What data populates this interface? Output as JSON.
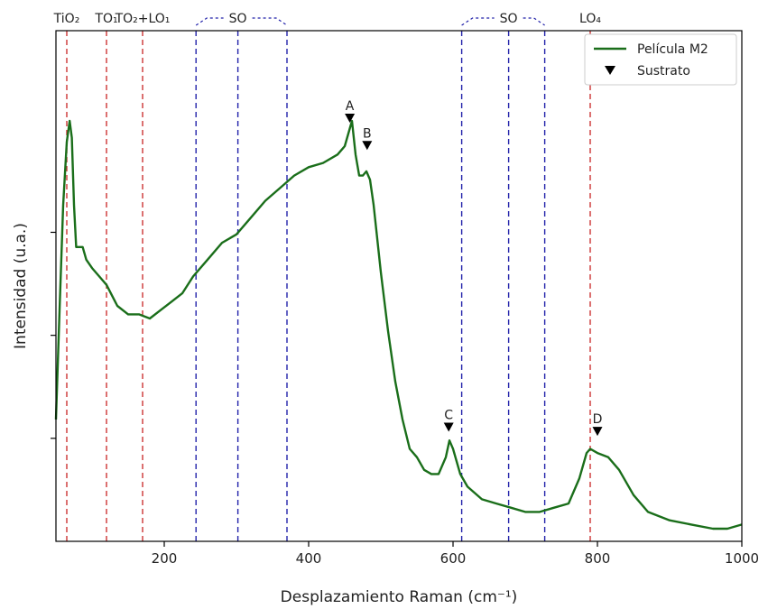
{
  "chart_data": {
    "type": "line",
    "xlabel": "Desplazamiento Raman (cm⁻¹)",
    "ylabel": "Intensidad (u.a.)",
    "xlim": [
      50,
      1000
    ],
    "ylim": [
      0,
      1
    ],
    "x_ticks": [
      {
        "value": 200,
        "label": "200"
      },
      {
        "value": 400,
        "label": "400"
      },
      {
        "value": 600,
        "label": "600"
      },
      {
        "value": 800,
        "label": "800"
      },
      {
        "value": 1000,
        "label": "1000"
      }
    ],
    "y_ticks": [
      0.245,
      0.49,
      0.735
    ],
    "series": [
      {
        "name": "Película M2",
        "color": "#1a6e1a",
        "x": [
          50,
          55,
          60,
          65,
          69,
          72,
          75,
          78,
          82,
          87,
          92,
          100,
          110,
          120,
          135,
          150,
          165,
          180,
          195,
          210,
          225,
          240,
          260,
          280,
          300,
          320,
          340,
          360,
          380,
          400,
          420,
          440,
          450,
          455,
          460,
          465,
          470,
          475,
          480,
          485,
          490,
          500,
          510,
          520,
          530,
          540,
          550,
          560,
          570,
          580,
          590,
          595,
          600,
          605,
          610,
          620,
          640,
          660,
          680,
          700,
          720,
          740,
          760,
          775,
          785,
          790,
          800,
          815,
          830,
          850,
          870,
          900,
          930,
          960,
          980,
          1000
        ],
        "y": [
          0.29,
          0.55,
          0.8,
          0.95,
          1.0,
          0.96,
          0.8,
          0.7,
          0.7,
          0.7,
          0.67,
          0.65,
          0.63,
          0.61,
          0.56,
          0.54,
          0.54,
          0.53,
          0.55,
          0.57,
          0.59,
          0.63,
          0.67,
          0.71,
          0.73,
          0.77,
          0.81,
          0.84,
          0.87,
          0.89,
          0.9,
          0.92,
          0.94,
          0.97,
          1.0,
          0.92,
          0.87,
          0.87,
          0.88,
          0.86,
          0.8,
          0.64,
          0.5,
          0.38,
          0.29,
          0.22,
          0.2,
          0.17,
          0.16,
          0.16,
          0.2,
          0.24,
          0.22,
          0.19,
          0.16,
          0.13,
          0.1,
          0.09,
          0.08,
          0.07,
          0.07,
          0.08,
          0.09,
          0.15,
          0.21,
          0.22,
          0.21,
          0.2,
          0.17,
          0.11,
          0.07,
          0.05,
          0.04,
          0.03,
          0.03,
          0.04
        ]
      },
      {
        "name": "Sustrato",
        "color": "#000000",
        "marker": "triangle-down",
        "points": [
          {
            "x": 457,
            "y": 0.985,
            "label": "A"
          },
          {
            "x": 481,
            "y": 0.92,
            "label": "B"
          },
          {
            "x": 594,
            "y": 0.25,
            "label": "C"
          },
          {
            "x": 800,
            "y": 0.24,
            "label": "D"
          }
        ]
      }
    ],
    "vlines": [
      {
        "x": 65,
        "color": "#cc3333"
      },
      {
        "x": 120,
        "color": "#cc3333"
      },
      {
        "x": 170,
        "color": "#cc3333"
      },
      {
        "x": 244,
        "color": "#2222aa"
      },
      {
        "x": 302,
        "color": "#2222aa"
      },
      {
        "x": 370,
        "color": "#2222aa"
      },
      {
        "x": 612,
        "color": "#2222aa"
      },
      {
        "x": 677,
        "color": "#2222aa"
      },
      {
        "x": 727,
        "color": "#2222aa"
      },
      {
        "x": 790,
        "color": "#cc3333"
      }
    ],
    "top_labels": [
      {
        "text": "TiO₂",
        "x": 65
      },
      {
        "text": "TO₁",
        "x": 120
      },
      {
        "text": "TO₂+LO₁",
        "x": 170
      },
      {
        "text": "SO",
        "x": 302,
        "bracket": [
          244,
          370
        ]
      },
      {
        "text": "SO",
        "x": 677,
        "bracket": [
          612,
          727
        ]
      },
      {
        "text": "LO₄",
        "x": 790
      }
    ],
    "legend": {
      "position": "top-right",
      "entries": [
        {
          "label": "Película M2",
          "symbol": "line"
        },
        {
          "label": "Sustrato",
          "symbol": "triangle-down"
        }
      ]
    },
    "grid": false
  }
}
